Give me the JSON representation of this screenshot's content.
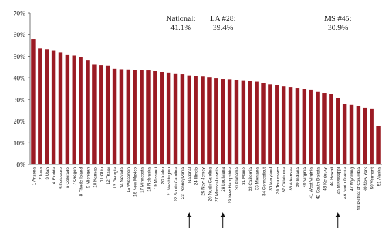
{
  "chart_data": {
    "type": "bar",
    "color": "#9b1b24",
    "ylim": [
      0,
      70
    ],
    "yticks": [
      "0%",
      "10%",
      "20%",
      "30%",
      "40%",
      "50%",
      "60%",
      "70%"
    ],
    "grid": false,
    "categories": [
      "1 Arizona",
      "2 Iowa",
      "3 Utah",
      "4 Florida",
      "5 Delaware",
      "6 Colorado",
      "7 Oregon",
      "8 Rhode Island",
      "9 Michigan",
      "10 Kansas",
      "11 Ohio",
      "12 Texas",
      "13 Georgia",
      "14 Nevada",
      "15 Wisconsin",
      "16 New Mexico",
      "17 Minnesota",
      "18 Nebraska",
      "19 Missouri",
      "20 Idaho",
      "21 Washington",
      "22 South Carolina",
      "23 Pennsylvania",
      "National",
      "24 Illinois",
      "25 New Jersey",
      "26 North Carolina",
      "27 Massachusetts",
      "28 Louisiana",
      "29 New Hampshire",
      "30 Alabama",
      "31 Maine",
      "32 California",
      "33 Montana",
      "34 Connecticut",
      "35 Maryland",
      "36 Tennessee",
      "37 Oklahoma",
      "38 Arkansas",
      "39 Indiana",
      "40 Virginia",
      "41 West Virginia",
      "42 South Dakota",
      "43 Kentucky",
      "44 Hawaii",
      "45 Mississippi",
      "46 North Dakota",
      "47 Wyoming",
      "48 District of Columbia",
      "49 New York",
      "50 Vermont",
      "51 Alaska"
    ],
    "values": [
      58.0,
      53.5,
      53.2,
      52.8,
      51.9,
      50.8,
      50.3,
      49.6,
      48.2,
      46.2,
      46.0,
      45.8,
      44.2,
      44.0,
      43.9,
      43.8,
      43.6,
      43.5,
      43.2,
      42.8,
      42.3,
      42.0,
      41.6,
      41.1,
      40.9,
      40.6,
      40.3,
      39.7,
      39.4,
      39.3,
      39.1,
      38.9,
      38.7,
      38.3,
      37.6,
      37.1,
      36.8,
      36.2,
      35.6,
      35.3,
      35.0,
      34.4,
      33.5,
      33.1,
      32.6,
      30.9,
      28.0,
      27.5,
      26.8,
      26.2,
      25.9,
      17.8
    ],
    "annotations": [
      {
        "category": "National",
        "title": "National:",
        "value": "41.1%"
      },
      {
        "category": "28 Louisiana",
        "title": "LA #28:",
        "value": "39.4%"
      },
      {
        "category": "45 Mississippi",
        "title": "MS #45:",
        "value": "30.9%"
      }
    ]
  }
}
